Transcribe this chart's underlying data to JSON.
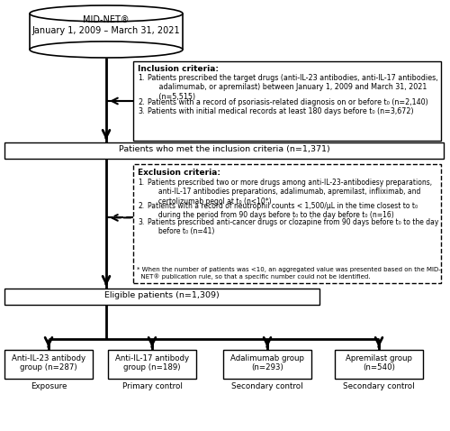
{
  "title": "MID-NET®\nJanuary 1, 2009 – March 31, 2021",
  "inclusion_title": "Inclusion criteria:",
  "inclusion_items": [
    "Patients prescribed the target drugs (anti-IL-23 antibodies, anti-IL-17 antibodies,\n     adalimumab, or apremilast) between January 1, 2009 and March 31, 2021\n     (n=5,515)",
    "Patients with a record of psoriasis-related diagnosis on or before t₀ (n=2,140)",
    "Patients with initial medical records at least 180 days before t₀ (n=3,672)"
  ],
  "inclusion_box": "Patients who met the inclusion criteria (n=1,371)",
  "exclusion_title": "Exclusion criteria:",
  "exclusion_items": [
    "Patients prescribed two or more drugs among anti-IL-23-antibodiesy preparations,\n     anti-IL-17 antibodies preparations, adalimumab, apremilast, infliximab, and\n     certolizumab pegol at t₀ (n<10*)",
    "Patients with a record of neutrophil counts < 1,500/μL in the time closest to t₀\n     during the period from 90 days before t₀ to the day before t₀ (n=16)",
    "Patients prescribed anti-cancer drugs or clozapine from 90 days before t₀ to the day\n     before t₀ (n=41)"
  ],
  "exclusion_footnote": "* When the number of patients was <10, an aggregated value was presented based on the MID-\n  NET® publication rule, so that a specific number could not be identified.",
  "eligible_box": "Eligible patients (n=1,309)",
  "groups": [
    {
      "label": "Anti-IL-23 antibody\ngroup (n=287)",
      "sublabel": "Exposure"
    },
    {
      "label": "Anti-IL-17 antibody\ngroup (n=189)",
      "sublabel": "Primary control"
    },
    {
      "label": "Adalimumab group\n(n=293)",
      "sublabel": "Secondary control"
    },
    {
      "label": "Apremilast group\n(n=540)",
      "sublabel": "Secondary control"
    }
  ],
  "bg_color": "#ffffff",
  "text_color": "#000000",
  "figw": 5.0,
  "figh": 4.78,
  "dpi": 100
}
